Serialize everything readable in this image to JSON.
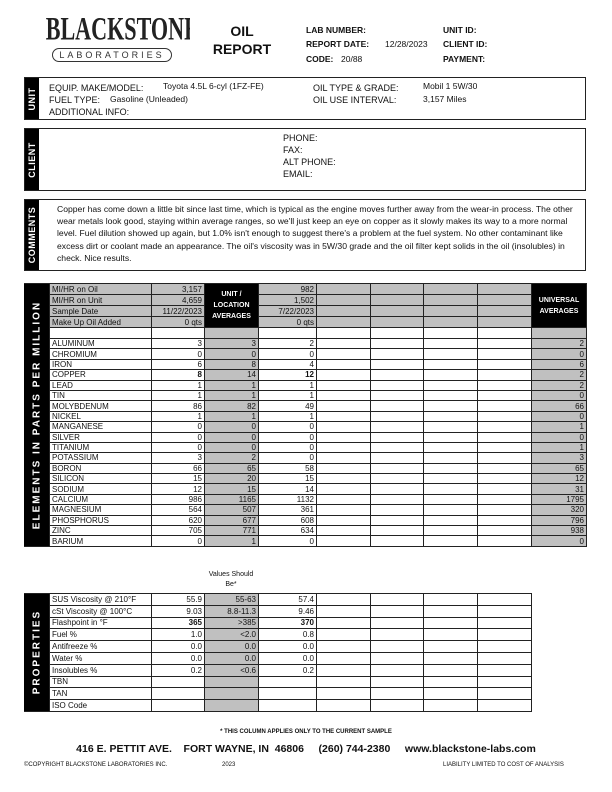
{
  "header": {
    "logo_text": "BLACKSTONE",
    "logo_sub": "LABORATORIES",
    "title_line1": "OIL",
    "title_line2": "REPORT",
    "lab_number_label": "LAB NUMBER:",
    "lab_number": "",
    "report_date_label": "REPORT DATE:",
    "report_date": "12/28/2023",
    "code_label": "CODE:",
    "code": "20/88",
    "unit_id_label": "UNIT ID:",
    "client_id_label": "CLIENT ID:",
    "payment_label": "PAYMENT:"
  },
  "unit": {
    "section": "UNIT",
    "make_label": "EQUIP. MAKE/MODEL:",
    "make": "Toyota 4.5L 6-cyl (1FZ-FE)",
    "fuel_label": "FUEL TYPE:",
    "fuel": "Gasoline (Unleaded)",
    "additional_label": "ADDITIONAL INFO:",
    "oil_type_label": "OIL TYPE & GRADE:",
    "oil_type": "Mobil 1 5W/30",
    "interval_label": "OIL USE INTERVAL:",
    "interval": "3,157 Miles"
  },
  "client": {
    "section": "CLIENT",
    "phone_label": "PHONE:",
    "fax_label": "FAX:",
    "alt_phone_label": "ALT PHONE:",
    "email_label": "EMAIL:"
  },
  "comments": {
    "section": "COMMENTS",
    "text": "Copper has come down a little bit since last time, which is typical as the engine moves further away from the wear-in process. The other wear metals look good, staying within average ranges, so we'll just keep an eye on copper as it slowly makes its way to a more normal level. Fuel dilution showed up again, but 1.0% isn't enough to suggest there's a problem at the fuel system. No other contaminant like excess dirt or coolant made an appearance. The oil's viscosity was in 5W/30 grade and the oil filter kept solids in the oil (insolubles) in check. Nice results."
  },
  "elements": {
    "section": "ELEMENTS IN PARTS PER MILLION",
    "unit_avg_header": "UNIT / LOCATION AVERAGES",
    "universal_header": "UNIVERSAL AVERAGES",
    "info_rows": [
      {
        "label": "MI/HR on Oil",
        "current": "3,157",
        "prev": "982"
      },
      {
        "label": "MI/HR on Unit",
        "current": "4,659",
        "prev": "1,502"
      },
      {
        "label": "Sample Date",
        "current": "11/22/2023",
        "prev": "7/22/2023"
      },
      {
        "label": "Make Up Oil Added",
        "current": "0 qts",
        "prev": "0 qts"
      }
    ],
    "rows": [
      {
        "label": "ALUMINUM",
        "current": "3",
        "avg": "3",
        "prev": "2",
        "universal": "2"
      },
      {
        "label": "CHROMIUM",
        "current": "0",
        "avg": "0",
        "prev": "0",
        "universal": "0"
      },
      {
        "label": "IRON",
        "current": "6",
        "avg": "8",
        "prev": "4",
        "universal": "6"
      },
      {
        "label": "COPPER",
        "current": "8",
        "avg": "14",
        "prev": "12",
        "universal": "2",
        "bold": true
      },
      {
        "label": "LEAD",
        "current": "1",
        "avg": "1",
        "prev": "1",
        "universal": "2"
      },
      {
        "label": "TIN",
        "current": "1",
        "avg": "1",
        "prev": "1",
        "universal": "0"
      },
      {
        "label": "MOLYBDENUM",
        "current": "86",
        "avg": "82",
        "prev": "49",
        "universal": "66"
      },
      {
        "label": "NICKEL",
        "current": "1",
        "avg": "1",
        "prev": "1",
        "universal": "0"
      },
      {
        "label": "MANGANESE",
        "current": "0",
        "avg": "0",
        "prev": "0",
        "universal": "1"
      },
      {
        "label": "SILVER",
        "current": "0",
        "avg": "0",
        "prev": "0",
        "universal": "0"
      },
      {
        "label": "TITANIUM",
        "current": "0",
        "avg": "0",
        "prev": "0",
        "universal": "1"
      },
      {
        "label": "POTASSIUM",
        "current": "3",
        "avg": "2",
        "prev": "0",
        "universal": "3"
      },
      {
        "label": "BORON",
        "current": "66",
        "avg": "65",
        "prev": "58",
        "universal": "65"
      },
      {
        "label": "SILICON",
        "current": "15",
        "avg": "20",
        "prev": "15",
        "universal": "12"
      },
      {
        "label": "SODIUM",
        "current": "12",
        "avg": "15",
        "prev": "14",
        "universal": "31"
      },
      {
        "label": "CALCIUM",
        "current": "986",
        "avg": "1165",
        "prev": "1132",
        "universal": "1795"
      },
      {
        "label": "MAGNESIUM",
        "current": "564",
        "avg": "507",
        "prev": "361",
        "universal": "320"
      },
      {
        "label": "PHOSPHORUS",
        "current": "620",
        "avg": "677",
        "prev": "608",
        "universal": "796"
      },
      {
        "label": "ZINC",
        "current": "705",
        "avg": "771",
        "prev": "634",
        "universal": "938"
      },
      {
        "label": "BARIUM",
        "current": "0",
        "avg": "1",
        "prev": "0",
        "universal": "0"
      }
    ]
  },
  "properties": {
    "section": "PROPERTIES",
    "should_be_header": "Values Should Be*",
    "rows": [
      {
        "label": "SUS Viscosity @ 210°F",
        "current": "55.9",
        "should": "55-63",
        "prev": "57.4"
      },
      {
        "label": "cSt Viscosity @ 100°C",
        "current": "9.03",
        "should": "8.8-11.3",
        "prev": "9.46"
      },
      {
        "label": "Flashpoint in °F",
        "current": "365",
        "should": ">385",
        "prev": "370",
        "bold": true
      },
      {
        "label": "Fuel %",
        "current": "1.0",
        "should": "<2.0",
        "prev": "0.8"
      },
      {
        "label": "Antifreeze %",
        "current": "0.0",
        "should": "0.0",
        "prev": "0.0"
      },
      {
        "label": "Water %",
        "current": "0.0",
        "should": "0.0",
        "prev": "0.0"
      },
      {
        "label": "Insolubles %",
        "current": "0.2",
        "should": "<0.6",
        "prev": "0.2"
      },
      {
        "label": "TBN",
        "current": "",
        "should": "",
        "prev": ""
      },
      {
        "label": "TAN",
        "current": "",
        "should": "",
        "prev": ""
      },
      {
        "label": "ISO Code",
        "current": "",
        "should": "",
        "prev": ""
      }
    ]
  },
  "footer": {
    "note": "* THIS COLUMN APPLIES ONLY TO THE CURRENT SAMPLE",
    "address": "416 E. PETTIT AVE.    FORT WAYNE, IN  46806     (260) 744-2380     www.blackstone-labs.com",
    "copyright": "©COPYRIGHT BLACKSTONE LABORATORIES INC.",
    "year": "2023",
    "liability": "LIABILITY LIMITED TO COST OF ANALYSIS"
  }
}
